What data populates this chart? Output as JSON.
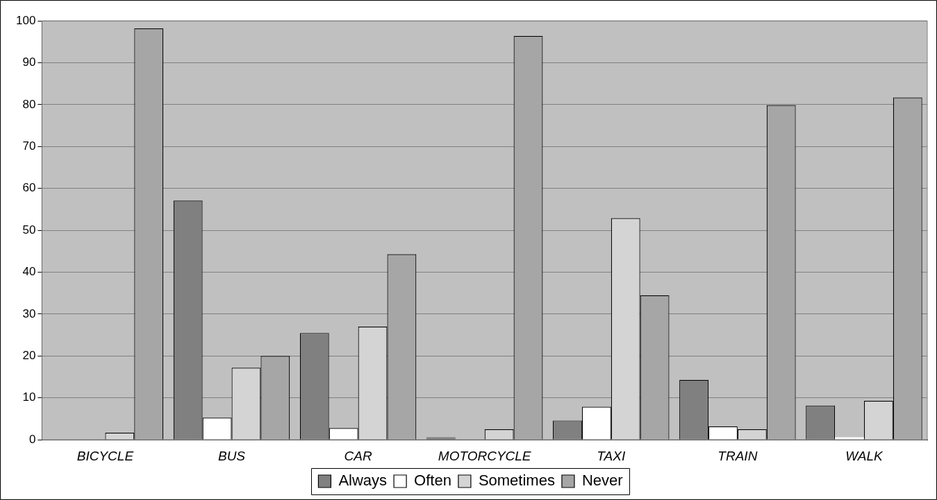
{
  "chart_data": {
    "type": "bar",
    "categories": [
      "BICYCLE",
      "BUS",
      "CAR",
      "MOTORCYCLE",
      "TAXI",
      "TRAIN",
      "WALK"
    ],
    "series": [
      {
        "name": "Always",
        "color": "#808080",
        "values": [
          0,
          57.1,
          25.5,
          0.6,
          4.6,
          14.3,
          8.2
        ]
      },
      {
        "name": "Often",
        "color": "#ffffff",
        "values": [
          0,
          5.3,
          2.8,
          0,
          7.9,
          3.2,
          0.6
        ]
      },
      {
        "name": "Sometimes",
        "color": "#d4d4d4",
        "values": [
          1.7,
          17.2,
          27,
          2.5,
          52.9,
          2.5,
          9.3
        ]
      },
      {
        "name": "Never",
        "color": "#a6a6a6",
        "values": [
          98.2,
          20,
          44.3,
          96.4,
          34.5,
          79.9,
          81.7
        ]
      }
    ],
    "ylim": [
      0,
      100
    ],
    "yticks": [
      0,
      10,
      20,
      30,
      40,
      50,
      60,
      70,
      80,
      90,
      100
    ],
    "grid": "y",
    "legend": "bottom"
  }
}
